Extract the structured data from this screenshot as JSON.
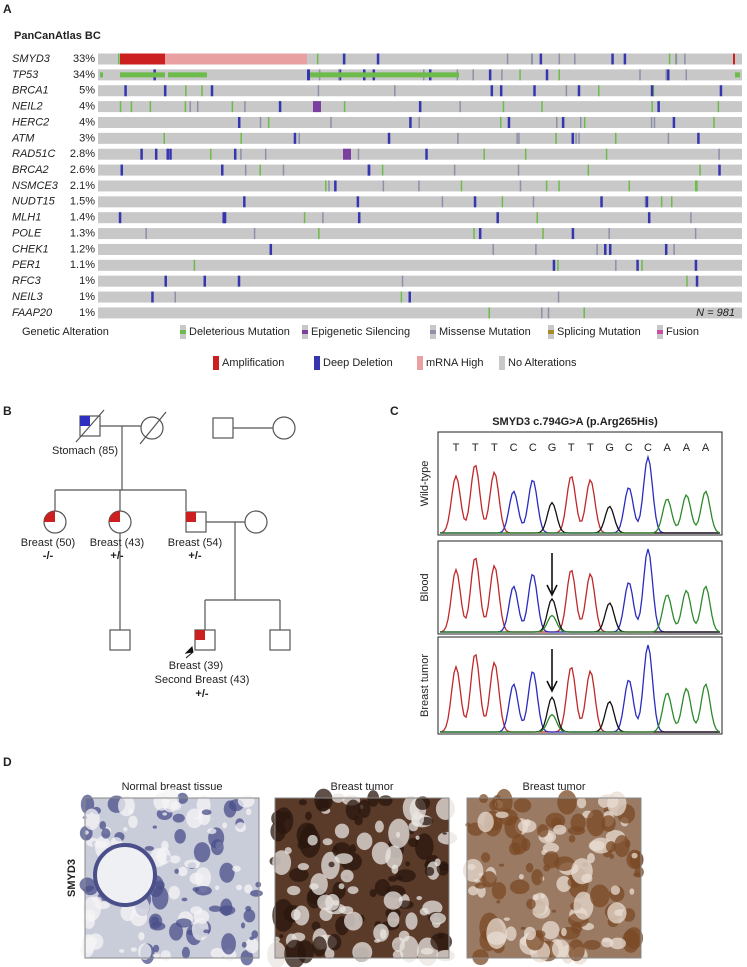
{
  "panel_a": {
    "letter": "A",
    "title": "PanCanAtlas BC",
    "rows": [
      {
        "gene": "SMYD3",
        "percent": "33%"
      },
      {
        "gene": "TP53",
        "percent": "34%"
      },
      {
        "gene": "BRCA1",
        "percent": "5%"
      },
      {
        "gene": "NEIL2",
        "percent": "4%"
      },
      {
        "gene": "HERC2",
        "percent": "4%"
      },
      {
        "gene": "ATM",
        "percent": "3%"
      },
      {
        "gene": "RAD51C",
        "percent": "2.8%"
      },
      {
        "gene": "BRCA2",
        "percent": "2.6%"
      },
      {
        "gene": "NSMCE3",
        "percent": "2.1%"
      },
      {
        "gene": "NUDT15",
        "percent": "1.5%"
      },
      {
        "gene": "MLH1",
        "percent": "1.4%"
      },
      {
        "gene": "POLE",
        "percent": "1.3%"
      },
      {
        "gene": "CHEK1",
        "percent": "1.2%"
      },
      {
        "gene": "PER1",
        "percent": "1.1%"
      },
      {
        "gene": "RFC3",
        "percent": "1%"
      },
      {
        "gene": "NEIL3",
        "percent": "1%"
      },
      {
        "gene": "FAAP20",
        "percent": "1%"
      }
    ],
    "sample_count": "N = 981",
    "legend_title": "Genetic Alteration",
    "legend": [
      {
        "label": "Deleterious Mutation",
        "color": "#6dbb4a"
      },
      {
        "label": "Epigenetic Silencing",
        "color": "#7b3fa0"
      },
      {
        "label": "Missense Mutation",
        "color": "#8d90a8"
      },
      {
        "label": "Splicing Mutation",
        "color": "#a88a2c"
      },
      {
        "label": "Fusion",
        "color": "#c84fa6"
      },
      {
        "label": "Amplification",
        "color": "#cc2020"
      },
      {
        "label": "Deep Deletion",
        "color": "#3535b0"
      },
      {
        "label": "mRNA High",
        "color": "#e8a0a0"
      },
      {
        "label": "No Alterations",
        "color": "#c8c8c8"
      }
    ]
  },
  "panel_b": {
    "letter": "B",
    "grandfather": "Stomach (85)",
    "children": [
      {
        "label": "Breast (50)",
        "genotype": "-/-"
      },
      {
        "label": "Breast (43)",
        "genotype": "+/-"
      },
      {
        "label": "Breast (54)",
        "genotype": "+/-"
      }
    ],
    "proband": {
      "label": "Breast (39)",
      "label2": "Second Breast (43)",
      "genotype": "+/-"
    }
  },
  "panel_c": {
    "letter": "C",
    "title": "SMYD3 c.794G>A (p.Arg265His)",
    "sequence": [
      "T",
      "T",
      "T",
      "C",
      "C",
      "G",
      "T",
      "T",
      "G",
      "C",
      "C",
      "A",
      "A",
      "A"
    ],
    "tracks": [
      "Wild-type",
      "Blood",
      "Breast tumor"
    ]
  },
  "panel_d": {
    "letter": "D",
    "row_label": "SMYD3",
    "images": [
      "Normal breast tissue",
      "Breast tumor",
      "Breast tumor"
    ]
  }
}
